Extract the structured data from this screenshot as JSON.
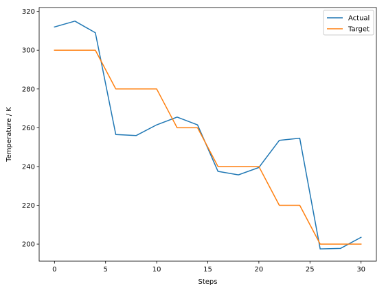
{
  "chart_data": {
    "type": "line",
    "title": "",
    "xlabel": "Steps",
    "ylabel": "Temperature / K",
    "xlim": [
      -1.5,
      31.5
    ],
    "ylim": [
      191.2,
      322.0
    ],
    "xticks": [
      0,
      5,
      10,
      15,
      20,
      25,
      30
    ],
    "yticks": [
      200,
      220,
      240,
      260,
      280,
      300,
      320
    ],
    "grid": false,
    "legend": "top-right",
    "series": [
      {
        "name": "Actual",
        "color": "#1f77b4",
        "x": [
          0,
          2,
          4,
          6,
          8,
          10,
          12,
          14,
          16,
          18,
          20,
          22,
          24,
          26,
          28,
          30
        ],
        "y": [
          312,
          315,
          309,
          256.5,
          256,
          261.5,
          265.5,
          261.5,
          237.5,
          235.7,
          239.5,
          253.5,
          254.6,
          197.5,
          197.8,
          203.5
        ]
      },
      {
        "name": "Target",
        "color": "#ff7f0e",
        "x": [
          0,
          2,
          4,
          6,
          8,
          10,
          12,
          14,
          16,
          18,
          20,
          22,
          24,
          26,
          28,
          30
        ],
        "y": [
          300,
          300,
          300,
          280,
          280,
          280,
          260,
          260,
          240,
          240,
          240,
          220,
          220,
          200,
          200,
          200
        ]
      }
    ]
  }
}
